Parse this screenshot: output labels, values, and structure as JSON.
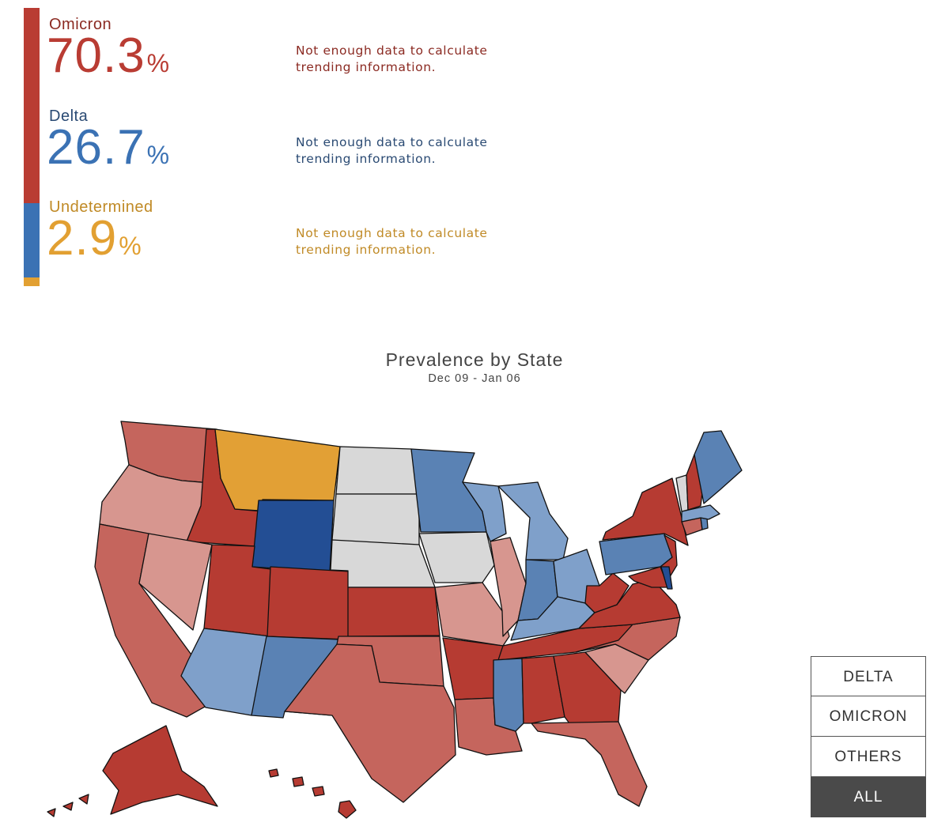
{
  "variants": [
    {
      "name": "Omicron",
      "value": "70.3",
      "unit": "%",
      "trend_text": [
        "Not enough data to calculate",
        "trending information."
      ],
      "label_color": "#8b2a22",
      "value_color": "#b93c33",
      "bar_color": "#b93c33",
      "share": 0.703
    },
    {
      "name": "Delta",
      "value": "26.7",
      "unit": "%",
      "trend_text": [
        "Not enough data to calculate",
        "trending information."
      ],
      "label_color": "#2a4a73",
      "value_color": "#3b72b4",
      "bar_color": "#3b72b4",
      "share": 0.267
    },
    {
      "name": "Undetermined",
      "value": "2.9",
      "unit": "%",
      "trend_text": [
        "Not enough data to calculate",
        "trending information."
      ],
      "label_color": "#c08a26",
      "value_color": "#e2a032",
      "bar_color": "#e2a032",
      "share": 0.029
    }
  ],
  "map": {
    "title": "Prevalence by State",
    "subtitle": "Dec 09 - Jan 06",
    "palette": {
      "omicron_dark": "#b63b32",
      "omicron_mid": "#c5655d",
      "omicron_light": "#d7968f",
      "delta_dark": "#234e94",
      "delta_mid": "#5a82b4",
      "delta_light": "#7fa0ca",
      "undetermined": "#e2a035",
      "no_data": "#d8d8d8"
    }
  },
  "filters": {
    "buttons": [
      "DELTA",
      "OMICRON",
      "OTHERS",
      "ALL"
    ],
    "active": "ALL"
  }
}
